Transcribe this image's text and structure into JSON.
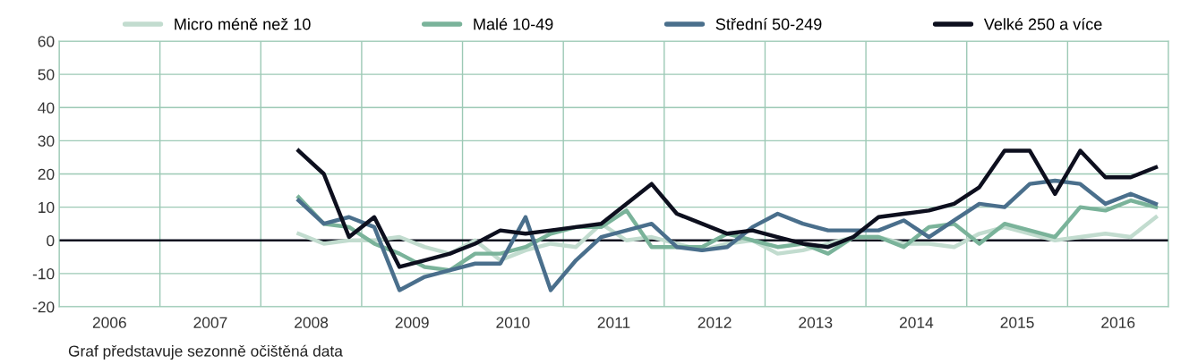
{
  "chart_data": {
    "type": "line",
    "x": [
      2008.375,
      2008.625,
      2008.875,
      2009.125,
      2009.375,
      2009.625,
      2009.875,
      2010.125,
      2010.375,
      2010.625,
      2010.875,
      2011.125,
      2011.375,
      2011.625,
      2011.875,
      2012.125,
      2012.375,
      2012.625,
      2012.875,
      2013.125,
      2013.375,
      2013.625,
      2013.875,
      2014.125,
      2014.375,
      2014.625,
      2014.875,
      2015.125,
      2015.375,
      2015.625,
      2015.875,
      2016.125,
      2016.375,
      2016.625,
      2016.875
    ],
    "series": [
      {
        "name": "Micro méně než 10",
        "color": "#c2dccf",
        "values": [
          2,
          -1,
          0,
          0,
          1,
          -2,
          -4,
          0,
          -6,
          -3,
          -1,
          -2,
          5,
          0,
          1,
          -1,
          -3,
          -1,
          0,
          -4,
          -3,
          -1,
          1,
          1,
          -1,
          -1,
          -2,
          2,
          4,
          2,
          0,
          1,
          2,
          1,
          7
        ]
      },
      {
        "name": "Malé 10-49",
        "color": "#7ab39a",
        "values": [
          13,
          5,
          4,
          -1,
          -4,
          -8,
          -9,
          -4,
          -4,
          -2,
          2,
          4,
          4,
          9,
          -2,
          -2,
          -2,
          2,
          0,
          -2,
          -1,
          -4,
          1,
          1,
          -2,
          4,
          5,
          -1,
          5,
          3,
          1,
          10,
          9,
          12,
          10
        ]
      },
      {
        "name": "Střední 50-249",
        "color": "#4a6f8c",
        "values": [
          12,
          5,
          7,
          4,
          -15,
          -11,
          -9,
          -7,
          -7,
          7,
          -15,
          -6,
          1,
          3,
          5,
          -2,
          -3,
          -2,
          4,
          8,
          5,
          3,
          3,
          3,
          6,
          1,
          6,
          11,
          10,
          17,
          18,
          17,
          11,
          14,
          11
        ]
      },
      {
        "name": "Velké 250 a více",
        "color": "#0d0f1e",
        "values": [
          27,
          20,
          1,
          7,
          -8,
          -6,
          -4,
          -1,
          3,
          2,
          3,
          4,
          5,
          11,
          17,
          8,
          5,
          2,
          3,
          1,
          -1,
          -2,
          1,
          7,
          8,
          9,
          11,
          16,
          27,
          27,
          14,
          27,
          19,
          19,
          22
        ]
      }
    ],
    "xlim": [
      2006,
      2017
    ],
    "xticks": [
      {
        "value": 2006,
        "label": null
      },
      {
        "value": 2006.5,
        "label": "2006"
      },
      {
        "value": 2007,
        "label": null
      },
      {
        "value": 2007.5,
        "label": "2007"
      },
      {
        "value": 2008,
        "label": null
      },
      {
        "value": 2008.5,
        "label": "2008"
      },
      {
        "value": 2009,
        "label": null
      },
      {
        "value": 2009.5,
        "label": "2009"
      },
      {
        "value": 2010,
        "label": null
      },
      {
        "value": 2010.5,
        "label": "2010"
      },
      {
        "value": 2011,
        "label": null
      },
      {
        "value": 2011.5,
        "label": "2011"
      },
      {
        "value": 2012,
        "label": null
      },
      {
        "value": 2012.5,
        "label": "2012"
      },
      {
        "value": 2013,
        "label": null
      },
      {
        "value": 2013.5,
        "label": "2013"
      },
      {
        "value": 2014,
        "label": null
      },
      {
        "value": 2014.5,
        "label": "2014"
      },
      {
        "value": 2015,
        "label": null
      },
      {
        "value": 2015.5,
        "label": "2015"
      },
      {
        "value": 2016,
        "label": null
      },
      {
        "value": 2016.5,
        "label": "2016"
      },
      {
        "value": 2017,
        "label": null
      }
    ],
    "ylim": [
      -20,
      60
    ],
    "yticks": [
      -20,
      -10,
      0,
      10,
      20,
      30,
      40,
      50,
      60
    ],
    "ref_lines": [
      {
        "axis": "y",
        "value": 0,
        "color": "#0d0f1e"
      }
    ],
    "grid": true,
    "legend": "top",
    "marker": "none",
    "line_style": "solid",
    "annotations": [
      "Graf představuje sezonně očištěná data"
    ]
  }
}
